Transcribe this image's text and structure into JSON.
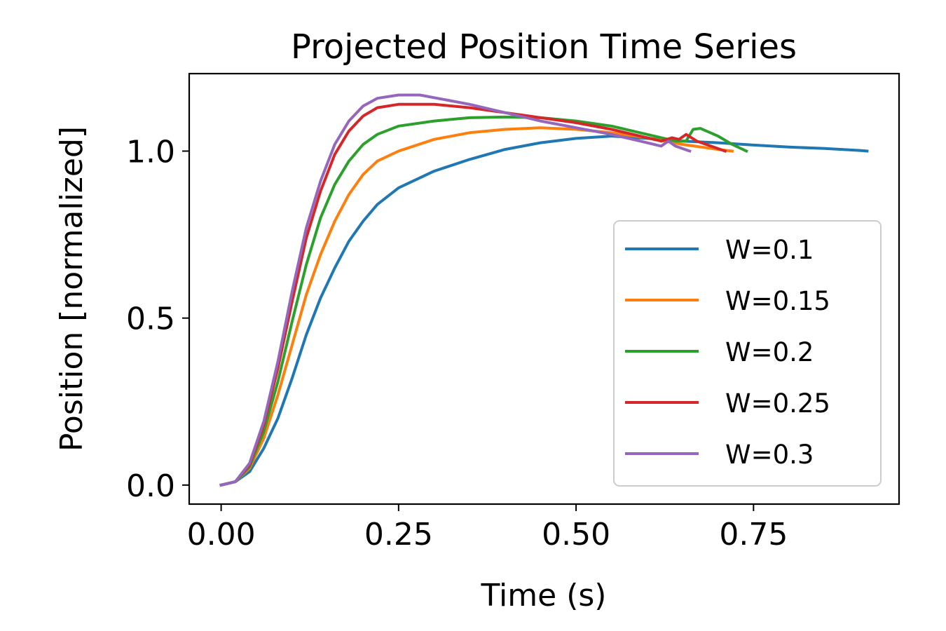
{
  "chart_data": {
    "type": "line",
    "title": "Projected Position Time Series",
    "xlabel": "Time (s)",
    "ylabel": "Position [normalized]",
    "xlim": [
      -0.045,
      0.955
    ],
    "ylim": [
      -0.057,
      1.232
    ],
    "xticks": [
      0.0,
      0.25,
      0.5,
      0.75
    ],
    "xtick_labels": [
      "0.00",
      "0.25",
      "0.50",
      "0.75"
    ],
    "yticks": [
      0.0,
      0.5,
      1.0
    ],
    "ytick_labels": [
      "0.0",
      "0.5",
      "1.0"
    ],
    "grid": false,
    "legend_position": "lower right",
    "series": [
      {
        "name": "W=0.1",
        "color": "#1f77b4",
        "points": [
          [
            0.0,
            0.0
          ],
          [
            0.02,
            0.01
          ],
          [
            0.04,
            0.04
          ],
          [
            0.06,
            0.11
          ],
          [
            0.08,
            0.2
          ],
          [
            0.1,
            0.32
          ],
          [
            0.12,
            0.45
          ],
          [
            0.14,
            0.56
          ],
          [
            0.16,
            0.65
          ],
          [
            0.18,
            0.73
          ],
          [
            0.2,
            0.79
          ],
          [
            0.22,
            0.84
          ],
          [
            0.25,
            0.89
          ],
          [
            0.3,
            0.94
          ],
          [
            0.35,
            0.975
          ],
          [
            0.4,
            1.005
          ],
          [
            0.45,
            1.025
          ],
          [
            0.5,
            1.038
          ],
          [
            0.55,
            1.045
          ],
          [
            0.6,
            1.038
          ],
          [
            0.65,
            1.03
          ],
          [
            0.7,
            1.025
          ],
          [
            0.75,
            1.018
          ],
          [
            0.8,
            1.012
          ],
          [
            0.85,
            1.008
          ],
          [
            0.9,
            1.002
          ],
          [
            0.91,
            1.0
          ]
        ]
      },
      {
        "name": "W=0.15",
        "color": "#ff7f0e",
        "points": [
          [
            0.0,
            0.0
          ],
          [
            0.02,
            0.01
          ],
          [
            0.04,
            0.05
          ],
          [
            0.06,
            0.14
          ],
          [
            0.08,
            0.27
          ],
          [
            0.1,
            0.42
          ],
          [
            0.12,
            0.57
          ],
          [
            0.14,
            0.69
          ],
          [
            0.16,
            0.79
          ],
          [
            0.18,
            0.87
          ],
          [
            0.2,
            0.93
          ],
          [
            0.22,
            0.97
          ],
          [
            0.25,
            1.0
          ],
          [
            0.3,
            1.035
          ],
          [
            0.35,
            1.055
          ],
          [
            0.4,
            1.065
          ],
          [
            0.45,
            1.07
          ],
          [
            0.5,
            1.065
          ],
          [
            0.55,
            1.055
          ],
          [
            0.6,
            1.04
          ],
          [
            0.65,
            1.02
          ],
          [
            0.7,
            1.005
          ],
          [
            0.72,
            1.0
          ]
        ]
      },
      {
        "name": "W=0.2",
        "color": "#2ca02c",
        "points": [
          [
            0.0,
            0.0
          ],
          [
            0.02,
            0.01
          ],
          [
            0.04,
            0.055
          ],
          [
            0.06,
            0.16
          ],
          [
            0.08,
            0.31
          ],
          [
            0.1,
            0.49
          ],
          [
            0.12,
            0.66
          ],
          [
            0.14,
            0.8
          ],
          [
            0.16,
            0.9
          ],
          [
            0.18,
            0.97
          ],
          [
            0.2,
            1.02
          ],
          [
            0.22,
            1.05
          ],
          [
            0.25,
            1.075
          ],
          [
            0.3,
            1.09
          ],
          [
            0.35,
            1.1
          ],
          [
            0.4,
            1.102
          ],
          [
            0.45,
            1.1
          ],
          [
            0.5,
            1.09
          ],
          [
            0.55,
            1.075
          ],
          [
            0.6,
            1.05
          ],
          [
            0.64,
            1.03
          ],
          [
            0.655,
            1.03
          ],
          [
            0.665,
            1.065
          ],
          [
            0.675,
            1.068
          ],
          [
            0.7,
            1.045
          ],
          [
            0.72,
            1.02
          ],
          [
            0.74,
            1.0
          ]
        ]
      },
      {
        "name": "W=0.25",
        "color": "#d62728",
        "points": [
          [
            0.0,
            0.0
          ],
          [
            0.02,
            0.01
          ],
          [
            0.04,
            0.06
          ],
          [
            0.06,
            0.18
          ],
          [
            0.08,
            0.35
          ],
          [
            0.1,
            0.55
          ],
          [
            0.12,
            0.74
          ],
          [
            0.14,
            0.88
          ],
          [
            0.16,
            0.99
          ],
          [
            0.18,
            1.06
          ],
          [
            0.2,
            1.105
          ],
          [
            0.22,
            1.13
          ],
          [
            0.25,
            1.14
          ],
          [
            0.3,
            1.14
          ],
          [
            0.35,
            1.13
          ],
          [
            0.4,
            1.115
          ],
          [
            0.45,
            1.1
          ],
          [
            0.5,
            1.085
          ],
          [
            0.55,
            1.065
          ],
          [
            0.6,
            1.04
          ],
          [
            0.62,
            1.03
          ],
          [
            0.635,
            1.04
          ],
          [
            0.645,
            1.035
          ],
          [
            0.655,
            1.05
          ],
          [
            0.67,
            1.03
          ],
          [
            0.69,
            1.015
          ],
          [
            0.71,
            1.0
          ]
        ]
      },
      {
        "name": "W=0.3",
        "color": "#9467bd",
        "points": [
          [
            0.0,
            0.0
          ],
          [
            0.02,
            0.01
          ],
          [
            0.04,
            0.065
          ],
          [
            0.06,
            0.19
          ],
          [
            0.08,
            0.37
          ],
          [
            0.1,
            0.58
          ],
          [
            0.12,
            0.77
          ],
          [
            0.14,
            0.91
          ],
          [
            0.16,
            1.02
          ],
          [
            0.18,
            1.09
          ],
          [
            0.2,
            1.135
          ],
          [
            0.22,
            1.158
          ],
          [
            0.25,
            1.168
          ],
          [
            0.28,
            1.168
          ],
          [
            0.3,
            1.16
          ],
          [
            0.35,
            1.14
          ],
          [
            0.4,
            1.115
          ],
          [
            0.45,
            1.09
          ],
          [
            0.5,
            1.07
          ],
          [
            0.55,
            1.05
          ],
          [
            0.6,
            1.025
          ],
          [
            0.62,
            1.015
          ],
          [
            0.63,
            1.03
          ],
          [
            0.64,
            1.015
          ],
          [
            0.66,
            1.0
          ]
        ]
      }
    ]
  }
}
